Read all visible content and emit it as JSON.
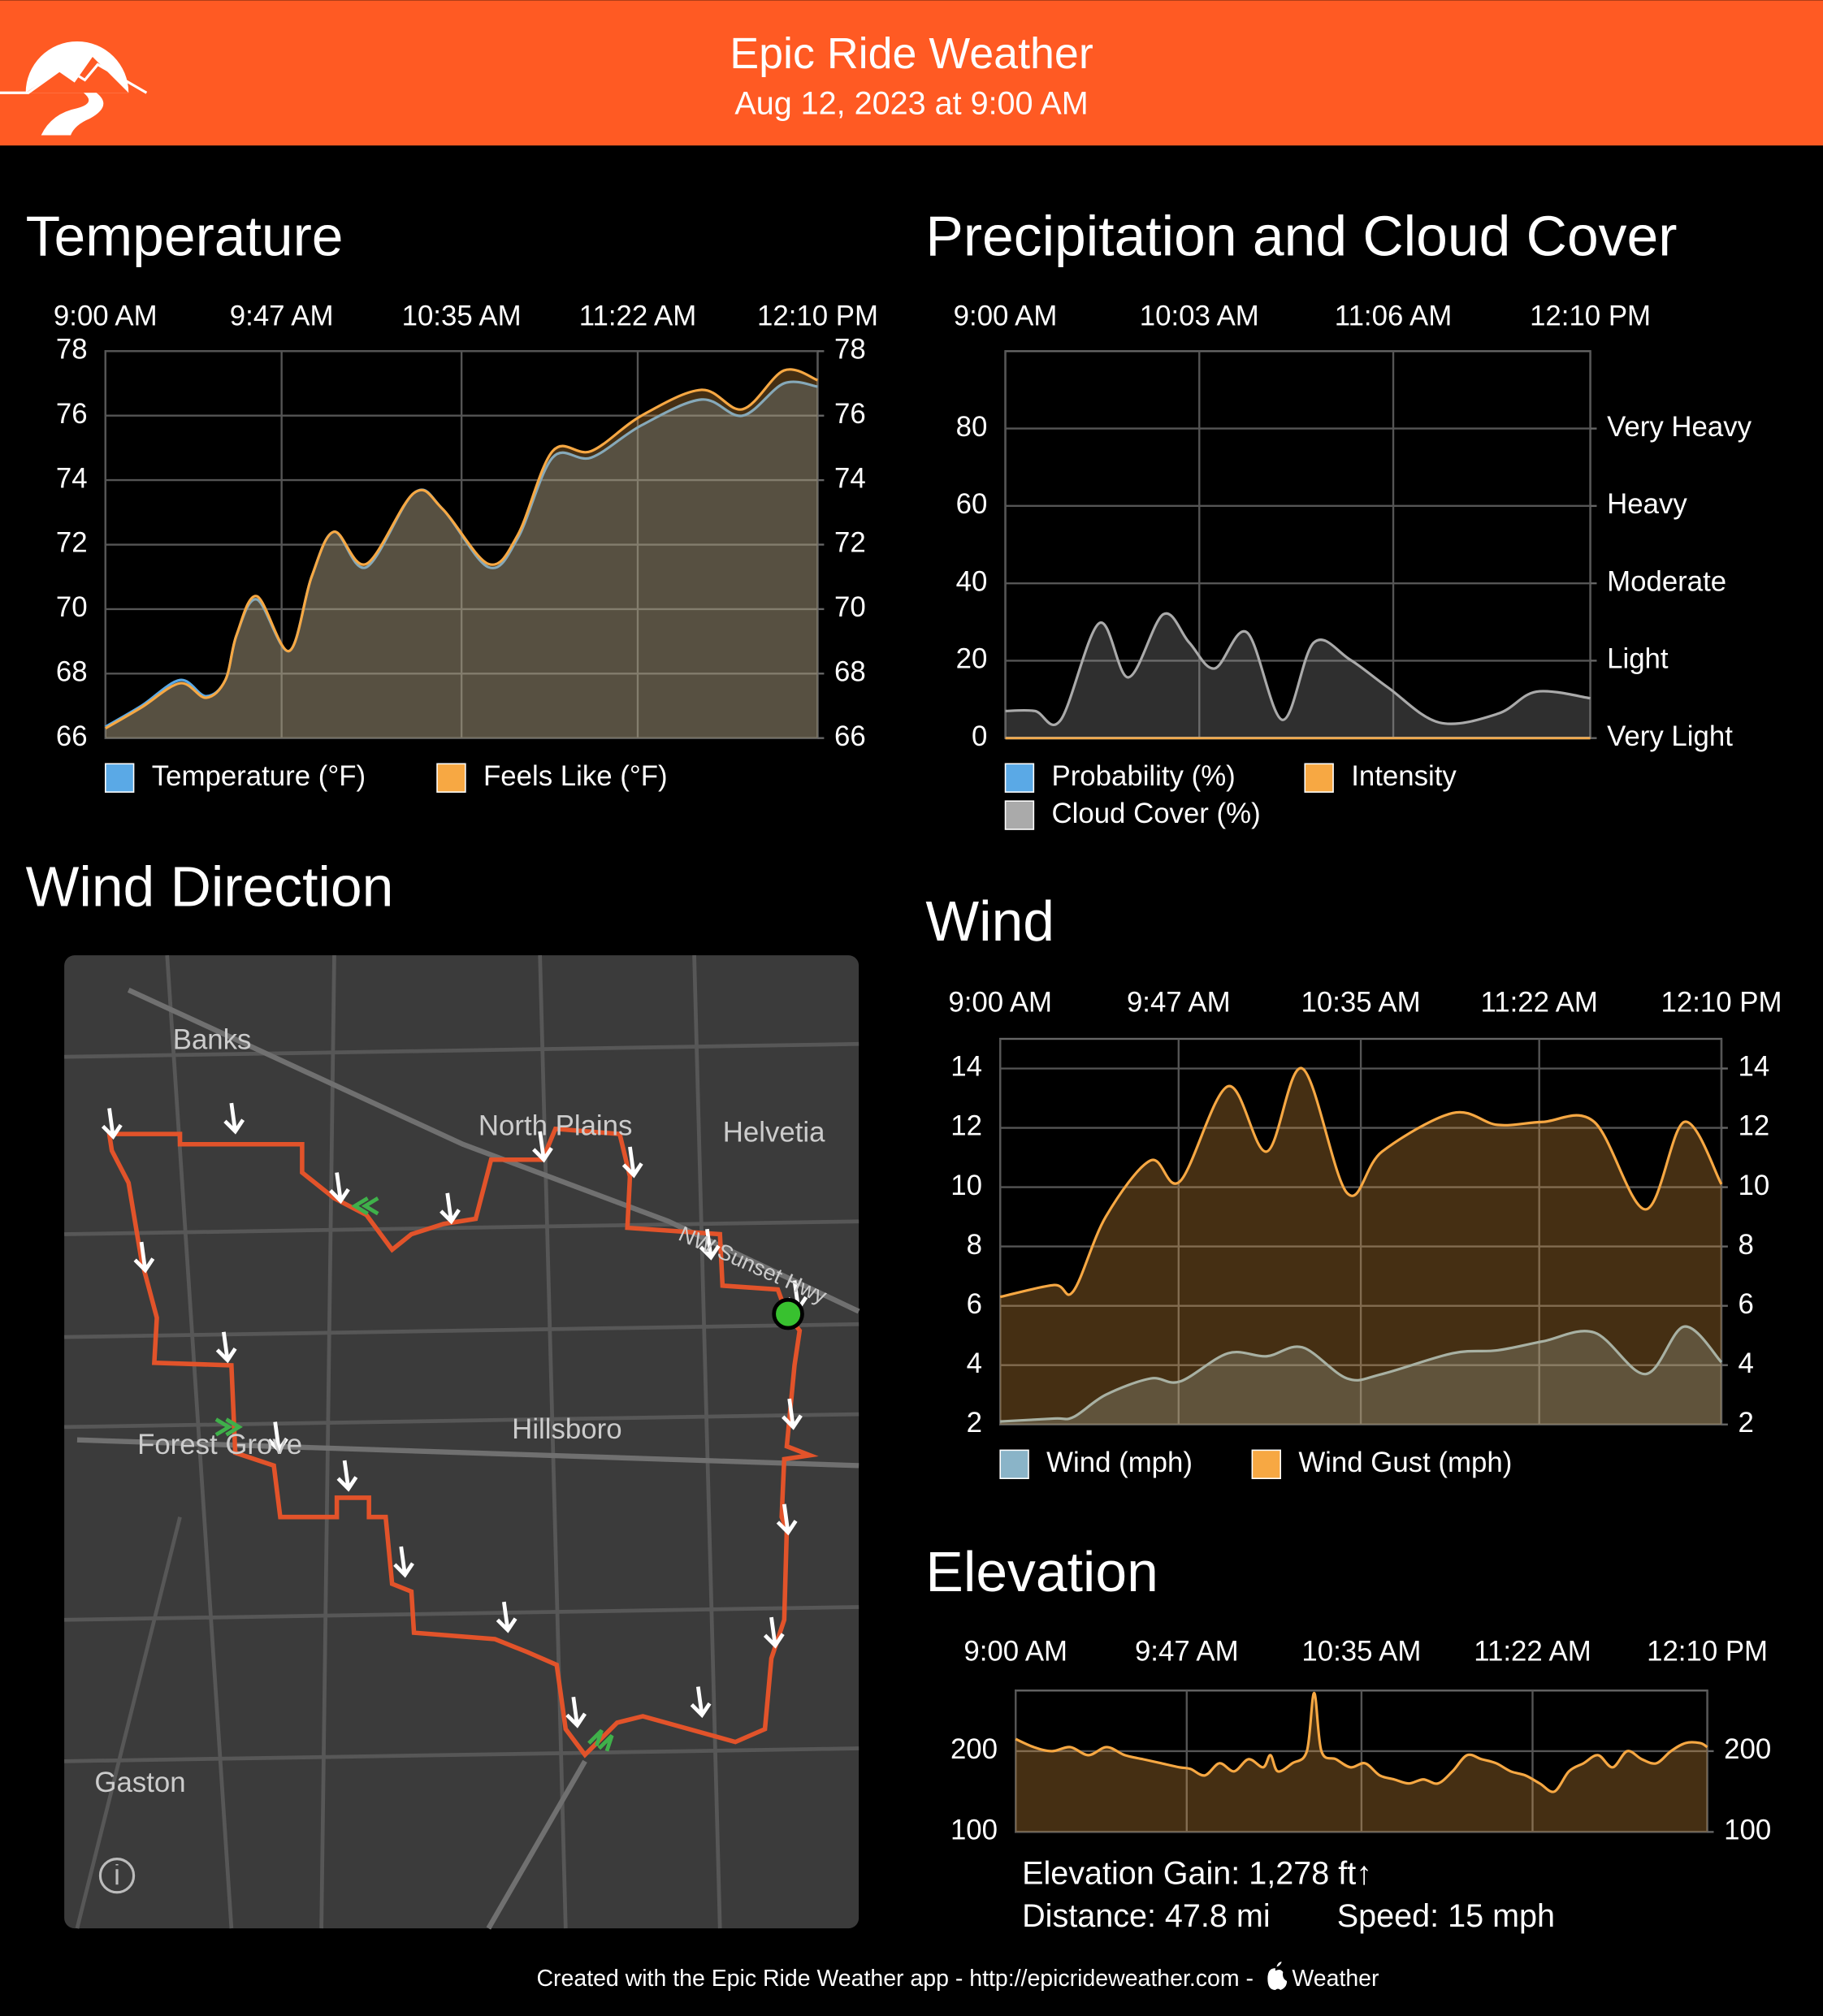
{
  "header": {
    "title": "Epic Ride Weather",
    "subtitle": "Aug 12, 2023 at 9:00 AM"
  },
  "titles": [
    "Temperature",
    "Precipitation and Cloud Cover",
    "Wind Direction",
    "Wind",
    "Elevation"
  ],
  "chart_data": [
    {
      "type": "area",
      "xlim": [
        0,
        190
      ],
      "xticks": [
        {
          "value": 0,
          "label": "9:00 AM"
        },
        {
          "value": 47,
          "label": "9:47 AM"
        },
        {
          "value": 95,
          "label": "10:35 AM"
        },
        {
          "value": 142,
          "label": "11:22 AM"
        },
        {
          "value": 190,
          "label": "12:10 PM"
        }
      ],
      "ylim": [
        66,
        78
      ],
      "yticks": [
        66,
        68,
        70,
        72,
        74,
        76,
        78
      ],
      "y2lim": [
        66,
        78
      ],
      "y2ticks": [
        66,
        68,
        70,
        72,
        74,
        76,
        78
      ],
      "grid": true,
      "x": [
        0,
        9.6,
        19.9,
        26.8,
        32,
        35,
        40.4,
        49,
        55,
        61,
        69.6,
        82.3,
        90,
        102.2,
        110,
        119.3,
        129.6,
        143,
        159,
        170,
        181,
        190
      ],
      "series": [
        {
          "name": "Temperature (°F)",
          "color": "#5aa9e6",
          "values": [
            66.35,
            67.0,
            67.8,
            67.3,
            67.8,
            69.2,
            70.3,
            68.7,
            71.0,
            72.4,
            71.3,
            73.6,
            73.1,
            71.3,
            72.2,
            74.7,
            74.7,
            75.7,
            76.5,
            76.0,
            77.0,
            76.9
          ]
        },
        {
          "name": "Feels Like (°F)",
          "color": "#f7a843",
          "values": [
            66.3,
            66.95,
            67.7,
            67.25,
            67.8,
            69.2,
            70.4,
            68.7,
            71.0,
            72.4,
            71.4,
            73.6,
            73.1,
            71.4,
            72.3,
            74.9,
            74.9,
            76.0,
            76.8,
            76.2,
            77.4,
            77.1
          ]
        }
      ]
    },
    {
      "type": "area",
      "xlim": [
        0,
        190
      ],
      "xticks": [
        {
          "value": 0,
          "label": "9:00 AM"
        },
        {
          "value": 63,
          "label": "10:03 AM"
        },
        {
          "value": 126,
          "label": "11:06 AM"
        },
        {
          "value": 190,
          "label": "12:10 PM"
        }
      ],
      "ylim": [
        0,
        100
      ],
      "yticks": [
        0,
        20,
        40,
        60,
        80
      ],
      "y2lim": [
        0,
        100
      ],
      "y2ticks": [
        {
          "value": 0,
          "label": "Very Light"
        },
        {
          "value": 20,
          "label": "Light"
        },
        {
          "value": 40,
          "label": "Moderate"
        },
        {
          "value": 60,
          "label": "Heavy"
        },
        {
          "value": 80,
          "label": "Very Heavy"
        }
      ],
      "grid": true,
      "x": [
        0,
        9.6,
        18,
        30.5,
        40,
        51.3,
        59.7,
        68,
        78.5,
        90,
        100.2,
        111.9,
        124.4,
        141,
        160,
        172.5,
        190
      ],
      "series": [
        {
          "name": "Probability (%)",
          "color": "#5aa9e6",
          "values": [
            0,
            0,
            0,
            0,
            0,
            0,
            0,
            0,
            0,
            0,
            0,
            0,
            0,
            0,
            0,
            0,
            0
          ]
        },
        {
          "name": "Intensity",
          "color": "#f7a843",
          "axis": "y2",
          "values": [
            0,
            0,
            0,
            0,
            0,
            0,
            0,
            0,
            0,
            0,
            0,
            0,
            0,
            0,
            0,
            0,
            0
          ]
        },
        {
          "name": "Cloud Cover (%)",
          "color": "#aaaaaa",
          "values": [
            7,
            7,
            4.7,
            29.7,
            15.7,
            32,
            24.7,
            18,
            27.3,
            4.7,
            24.7,
            20.3,
            13,
            4,
            6.3,
            12,
            10.3
          ]
        }
      ]
    },
    {
      "type": "area",
      "xlim": [
        0,
        190
      ],
      "xticks": [
        {
          "value": 0,
          "label": "9:00 AM"
        },
        {
          "value": 47,
          "label": "9:47 AM"
        },
        {
          "value": 95,
          "label": "10:35 AM"
        },
        {
          "value": 142,
          "label": "11:22 AM"
        },
        {
          "value": 190,
          "label": "12:10 PM"
        }
      ],
      "ylim": [
        2,
        15
      ],
      "yticks": [
        2,
        4,
        6,
        8,
        10,
        12,
        14
      ],
      "y2lim": [
        2,
        15
      ],
      "y2ticks": [
        2,
        4,
        6,
        8,
        10,
        12,
        14
      ],
      "grid": true,
      "x": [
        0,
        14.2,
        19.3,
        27.8,
        39.6,
        47.4,
        60,
        70.2,
        79.6,
        91.4,
        100.6,
        119.2,
        131,
        142.9,
        156.5,
        170,
        180.2,
        190
      ],
      "series": [
        {
          "name": "Wind (mph)",
          "color": "#8ab4c8",
          "values": [
            2.1,
            2.2,
            2.25,
            3.0,
            3.55,
            3.45,
            4.4,
            4.3,
            4.6,
            3.55,
            3.7,
            4.4,
            4.5,
            4.8,
            5.1,
            3.7,
            5.3,
            4.1
          ]
        },
        {
          "name": "Wind Gust (mph)",
          "color": "#f7a843",
          "values": [
            6.3,
            6.7,
            6.5,
            9.0,
            10.9,
            10.2,
            13.4,
            11.2,
            14.0,
            9.8,
            11.2,
            12.5,
            12.1,
            12.2,
            12.2,
            9.25,
            12.2,
            10.1
          ]
        }
      ]
    },
    {
      "type": "area",
      "xlim": [
        0,
        190
      ],
      "xticks": [
        {
          "value": 0,
          "label": "9:00 AM"
        },
        {
          "value": 47,
          "label": "9:47 AM"
        },
        {
          "value": 95,
          "label": "10:35 AM"
        },
        {
          "value": 142,
          "label": "11:22 AM"
        },
        {
          "value": 190,
          "label": "12:10 PM"
        }
      ],
      "ylim": [
        100,
        275
      ],
      "yticks": [
        100,
        200
      ],
      "y2lim": [
        100,
        275
      ],
      "y2ticks": [
        100,
        200
      ],
      "grid": true,
      "x": [
        0,
        5,
        10,
        15,
        20,
        25,
        30,
        35,
        40,
        45,
        48,
        52,
        56,
        60,
        64,
        68,
        70,
        72,
        76,
        80,
        82,
        84,
        88,
        92,
        96,
        100,
        104,
        108,
        112,
        116,
        120,
        124,
        128,
        132,
        136,
        140,
        144,
        148,
        152,
        156,
        160,
        164,
        168,
        172,
        176,
        180,
        184,
        188,
        190
      ],
      "series": [
        {
          "color": "#f7a843",
          "values": [
            215,
            205,
            200,
            205,
            195,
            205,
            195,
            190,
            185,
            180,
            178,
            170,
            185,
            175,
            190,
            180,
            195,
            175,
            185,
            200,
            272,
            200,
            190,
            180,
            185,
            170,
            165,
            160,
            165,
            160,
            175,
            195,
            190,
            185,
            175,
            170,
            160,
            150,
            175,
            185,
            195,
            180,
            200,
            190,
            185,
            200,
            210,
            210,
            205
          ]
        }
      ]
    }
  ],
  "map": {
    "labels": [
      "Banks",
      "North Plains",
      "Helvetia",
      "NW Sunset Hwy",
      "Forest Grove",
      "Hillsboro",
      "Gaston"
    ]
  },
  "stats": {
    "gain": "Elevation Gain: 1,278 ft↑",
    "distance": "Distance: 47.8 mi",
    "speed": "Speed: 15 mph"
  },
  "footer": {
    "text": "Created with the Epic Ride Weather app - http://epicrideweather.com -",
    "brand": "Weather"
  }
}
